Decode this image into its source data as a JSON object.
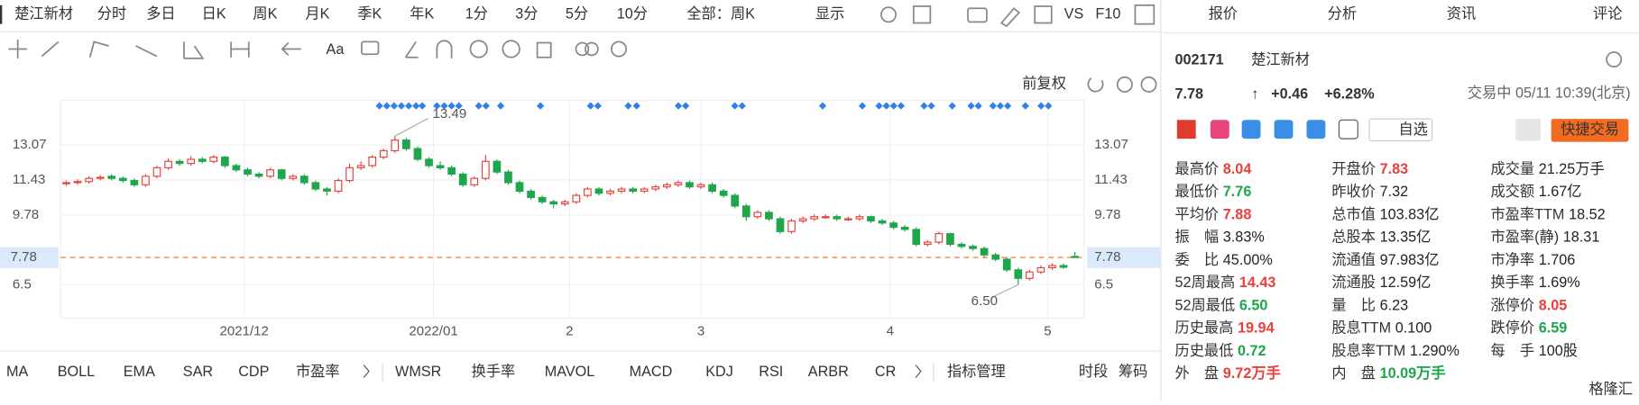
{
  "toolbar": {
    "stock": "楚江新材",
    "periods": [
      "分时",
      "多日",
      "日K",
      "周K",
      "月K",
      "季K",
      "年K",
      "1分",
      "3分",
      "5分",
      "10分"
    ],
    "active_period": 2,
    "range": "全部：周K",
    "display": "显示",
    "compare": "VS",
    "f10": "F10",
    "font_tool": "Aa",
    "adjust": "前复权"
  },
  "chart_data": {
    "type": "candlestick",
    "up_color": "#e8413a",
    "down_color": "#1ea64a",
    "ylim": [
      4.93,
      15.18
    ],
    "yticks": [
      13.07,
      11.43,
      9.78,
      6.5
    ],
    "xlim": [
      -0.5,
      89.8
    ],
    "xticks": [
      {
        "value": 15.7,
        "label": "2021/12"
      },
      {
        "value": 32.4,
        "label": "2022/01"
      },
      {
        "value": 44.4,
        "label": "2"
      },
      {
        "value": 56,
        "label": "3"
      },
      {
        "value": 72.7,
        "label": "4"
      },
      {
        "value": 86.6,
        "label": "5"
      }
    ],
    "current_price": 7.78,
    "annotations": [
      {
        "text": "13.49",
        "value": 13.49,
        "index": 29
      },
      {
        "text": "6.50",
        "value": 6.5,
        "index": 84
      }
    ],
    "candles": [
      [
        11.25,
        11.4,
        11.15,
        11.3
      ],
      [
        11.3,
        11.45,
        11.2,
        11.35
      ],
      [
        11.35,
        11.6,
        11.25,
        11.5
      ],
      [
        11.5,
        11.65,
        11.4,
        11.55
      ],
      [
        11.6,
        11.7,
        11.4,
        11.5
      ],
      [
        11.5,
        11.6,
        11.3,
        11.4
      ],
      [
        11.4,
        11.5,
        11.1,
        11.2
      ],
      [
        11.2,
        11.7,
        11.1,
        11.6
      ],
      [
        11.6,
        12.1,
        11.5,
        12.0
      ],
      [
        12.0,
        12.45,
        11.9,
        12.3
      ],
      [
        12.3,
        12.4,
        12.1,
        12.2
      ],
      [
        12.2,
        12.55,
        12.1,
        12.4
      ],
      [
        12.4,
        12.5,
        12.2,
        12.3
      ],
      [
        12.3,
        12.6,
        12.2,
        12.5
      ],
      [
        12.5,
        12.55,
        12.0,
        12.1
      ],
      [
        12.1,
        12.2,
        11.8,
        11.9
      ],
      [
        11.9,
        12.0,
        11.6,
        11.7
      ],
      [
        11.7,
        11.8,
        11.5,
        11.6
      ],
      [
        11.6,
        12.0,
        11.5,
        11.9
      ],
      [
        11.9,
        11.95,
        11.4,
        11.5
      ],
      [
        11.5,
        11.7,
        11.4,
        11.6
      ],
      [
        11.6,
        11.7,
        11.2,
        11.3
      ],
      [
        11.3,
        11.4,
        10.9,
        11.0
      ],
      [
        11.0,
        11.1,
        10.7,
        10.9
      ],
      [
        10.9,
        11.5,
        10.8,
        11.4
      ],
      [
        11.4,
        12.2,
        11.3,
        12.0
      ],
      [
        12.0,
        12.3,
        11.9,
        12.1
      ],
      [
        12.1,
        12.6,
        12.0,
        12.5
      ],
      [
        12.5,
        12.9,
        12.4,
        12.8
      ],
      [
        12.8,
        13.49,
        12.7,
        13.3
      ],
      [
        13.3,
        13.4,
        12.8,
        12.9
      ],
      [
        12.9,
        13.0,
        12.3,
        12.4
      ],
      [
        12.4,
        12.5,
        12.0,
        12.1
      ],
      [
        12.1,
        12.3,
        11.9,
        12.0
      ],
      [
        12.0,
        12.1,
        11.6,
        11.7
      ],
      [
        11.7,
        11.8,
        11.1,
        11.2
      ],
      [
        11.2,
        11.6,
        11.1,
        11.5
      ],
      [
        11.5,
        12.6,
        11.4,
        12.3
      ],
      [
        12.3,
        12.4,
        11.7,
        11.8
      ],
      [
        11.8,
        11.9,
        11.2,
        11.3
      ],
      [
        11.3,
        11.4,
        10.8,
        10.9
      ],
      [
        10.9,
        11.0,
        10.5,
        10.6
      ],
      [
        10.6,
        10.7,
        10.3,
        10.4
      ],
      [
        10.4,
        10.5,
        10.1,
        10.3
      ],
      [
        10.3,
        10.5,
        10.2,
        10.4
      ],
      [
        10.4,
        10.8,
        10.3,
        10.7
      ],
      [
        10.7,
        11.1,
        10.6,
        11.0
      ],
      [
        11.0,
        11.1,
        10.7,
        10.8
      ],
      [
        10.8,
        11.0,
        10.7,
        10.9
      ],
      [
        10.9,
        11.1,
        10.8,
        11.0
      ],
      [
        11.0,
        11.1,
        10.8,
        10.9
      ],
      [
        10.9,
        11.1,
        10.8,
        11.0
      ],
      [
        11.0,
        11.2,
        10.9,
        11.1
      ],
      [
        11.1,
        11.3,
        11.0,
        11.2
      ],
      [
        11.2,
        11.4,
        11.1,
        11.3
      ],
      [
        11.3,
        11.4,
        11.0,
        11.1
      ],
      [
        11.1,
        11.3,
        11.0,
        11.2
      ],
      [
        11.2,
        11.3,
        10.8,
        10.9
      ],
      [
        10.9,
        11.0,
        10.6,
        10.7
      ],
      [
        10.7,
        10.8,
        10.1,
        10.2
      ],
      [
        10.2,
        10.3,
        9.5,
        9.7
      ],
      [
        9.7,
        10.0,
        9.6,
        9.9
      ],
      [
        9.9,
        10.0,
        9.5,
        9.6
      ],
      [
        9.6,
        9.7,
        8.9,
        9.0
      ],
      [
        9.0,
        9.6,
        8.9,
        9.5
      ],
      [
        9.5,
        9.7,
        9.4,
        9.6
      ],
      [
        9.6,
        9.8,
        9.5,
        9.7
      ],
      [
        9.65,
        9.8,
        9.6,
        9.7
      ],
      [
        9.7,
        9.8,
        9.5,
        9.6
      ],
      [
        9.55,
        9.7,
        9.5,
        9.6
      ],
      [
        9.6,
        9.8,
        9.5,
        9.7
      ],
      [
        9.7,
        9.75,
        9.4,
        9.5
      ],
      [
        9.5,
        9.6,
        9.3,
        9.4
      ],
      [
        9.4,
        9.5,
        9.1,
        9.2
      ],
      [
        9.2,
        9.3,
        9.0,
        9.1
      ],
      [
        9.1,
        9.2,
        8.3,
        8.4
      ],
      [
        8.4,
        8.6,
        8.3,
        8.5
      ],
      [
        8.5,
        9.0,
        8.4,
        8.9
      ],
      [
        8.9,
        8.95,
        8.3,
        8.4
      ],
      [
        8.4,
        8.5,
        8.2,
        8.3
      ],
      [
        8.3,
        8.4,
        8.1,
        8.2
      ],
      [
        8.2,
        8.3,
        7.8,
        7.9
      ],
      [
        7.9,
        8.0,
        7.6,
        7.7
      ],
      [
        7.7,
        7.8,
        7.1,
        7.2
      ],
      [
        7.2,
        7.3,
        6.5,
        6.8
      ],
      [
        6.8,
        7.2,
        6.7,
        7.1
      ],
      [
        7.1,
        7.4,
        7.0,
        7.3
      ],
      [
        7.3,
        7.5,
        7.2,
        7.4
      ],
      [
        7.4,
        7.5,
        7.25,
        7.32
      ],
      [
        7.83,
        8.04,
        7.76,
        7.78
      ]
    ]
  },
  "indicators": [
    "MA",
    "BOLL",
    "EMA",
    "SAR",
    "CDP",
    "市盈率",
    "WMSR",
    "换手率",
    "MAVOL",
    "MACD",
    "KDJ",
    "RSI",
    "ARBR",
    "CR"
  ],
  "indicator_manage": "指标管理",
  "side_tools": [
    "时段",
    "筹码"
  ],
  "tabs": [
    "报价",
    "分析",
    "资讯",
    "评论"
  ],
  "quote": {
    "code": "002171",
    "name": "楚江新材",
    "price": "7.78",
    "arrow": "↑",
    "change": "+0.46",
    "percent": "+6.28%",
    "status": "交易中 05/11 10:39(北京)",
    "watchlist": "自选",
    "trade": "快捷交易"
  },
  "stats": [
    [
      {
        "label": "最高价",
        "value": "8.04",
        "tone": "up"
      },
      {
        "label": "开盘价",
        "value": "7.83",
        "tone": "up"
      },
      {
        "label": "成交量",
        "value": "21.25万手"
      }
    ],
    [
      {
        "label": "最低价",
        "value": "7.76",
        "tone": "down"
      },
      {
        "label": "昨收价",
        "value": "7.32"
      },
      {
        "label": "成交额",
        "value": "1.67亿"
      }
    ],
    [
      {
        "label": "平均价",
        "value": "7.88",
        "tone": "up"
      },
      {
        "label": "总市值",
        "value": "103.83亿"
      },
      {
        "label": "市盈率TTM",
        "value": "18.52"
      }
    ],
    [
      {
        "label": "振　幅",
        "value": "3.83%"
      },
      {
        "label": "总股本",
        "value": "13.35亿"
      },
      {
        "label": "市盈率(静)",
        "value": "18.31"
      }
    ],
    [
      {
        "label": "委　比",
        "value": "45.00%"
      },
      {
        "label": "流通值",
        "value": "97.983亿"
      },
      {
        "label": "市净率",
        "value": "1.706"
      }
    ],
    [
      {
        "label": "52周最高",
        "value": "14.43",
        "tone": "up"
      },
      {
        "label": "流通股",
        "value": "12.59亿"
      },
      {
        "label": "换手率",
        "value": "1.69%"
      }
    ],
    [
      {
        "label": "52周最低",
        "value": "6.50",
        "tone": "down"
      },
      {
        "label": "量　比",
        "value": "6.23"
      },
      {
        "label": "涨停价",
        "value": "8.05",
        "tone": "up"
      }
    ],
    [
      {
        "label": "历史最高",
        "value": "19.94",
        "tone": "up"
      },
      {
        "label": "股息TTM",
        "value": "0.100"
      },
      {
        "label": "跌停价",
        "value": "6.59",
        "tone": "down"
      }
    ],
    [
      {
        "label": "历史最低",
        "value": "0.72",
        "tone": "down"
      },
      {
        "label": "股息率TTM",
        "value": "1.290%"
      },
      {
        "label": "每　手",
        "value": "100股"
      }
    ],
    [
      {
        "label": "外　盘",
        "value": "9.72万手",
        "tone": "up"
      },
      {
        "label": "内　盘",
        "value": "10.09万手",
        "tone": "down"
      }
    ]
  ],
  "watermark": "格隆汇"
}
